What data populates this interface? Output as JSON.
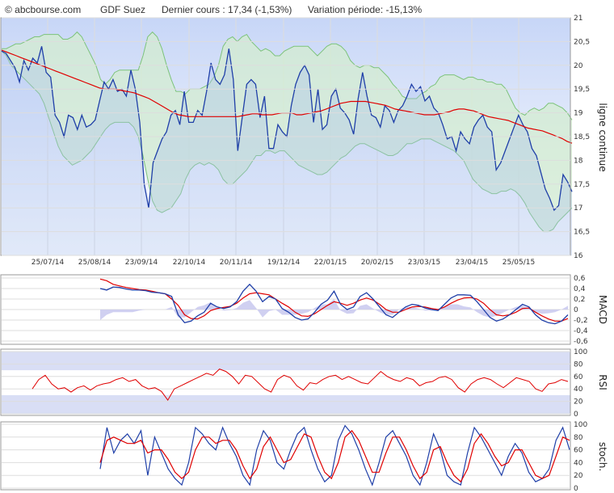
{
  "header": {
    "source": "© abcbourse.com",
    "name": "GDF Suez",
    "last_label": "Dernier cours : 17,34 (-1,53%)",
    "variation_label": "Variation période: -15,13%"
  },
  "colors": {
    "price_line": "#1f3fa8",
    "bollinger_fill": "#d3ecd0",
    "bollinger_edge": "#7dc37a",
    "moving_average": "#e00000",
    "macd_histogram": "#c8c8ee",
    "rsi_band": "#d9def5",
    "grid": "#dddddd"
  },
  "chart_data": [
    {
      "type": "line",
      "panel": "price",
      "ylabel": "ligne continue",
      "ylim": [
        16,
        21
      ],
      "yticks": [
        "21",
        "20,5",
        "20",
        "19,5",
        "19",
        "18,5",
        "18",
        "17,5",
        "17",
        "16,5",
        "16"
      ],
      "xticks": [
        "25/07/14",
        "25/08/14",
        "23/09/14",
        "22/10/14",
        "20/11/14",
        "19/12/14",
        "22/01/15",
        "20/02/15",
        "23/03/15",
        "23/04/15",
        "25/05/15"
      ],
      "grid": true,
      "series": [
        {
          "role": "price",
          "values": [
            20.3,
            20.25,
            20.1,
            19.95,
            19.65,
            20.1,
            19.9,
            20.15,
            20.05,
            20.4,
            19.85,
            19.75,
            18.95,
            18.8,
            18.5,
            18.95,
            18.9,
            18.65,
            18.95,
            18.7,
            18.75,
            18.85,
            19.25,
            19.65,
            19.5,
            19.7,
            19.45,
            19.5,
            19.35,
            19.9,
            19.5,
            18.8,
            17.5,
            17.0,
            17.95,
            18.2,
            18.45,
            18.6,
            18.95,
            19.05,
            18.75,
            19.45,
            18.8,
            18.8,
            19.05,
            18.95,
            19.45,
            20.05,
            19.7,
            19.6,
            19.8,
            20.35,
            19.7,
            18.2,
            18.9,
            19.6,
            19.7,
            19.6,
            18.9,
            19.35,
            18.25,
            18.25,
            18.75,
            18.6,
            18.5,
            19.15,
            19.6,
            19.85,
            20.0,
            19.8,
            18.8,
            19.5,
            18.65,
            18.75,
            19.35,
            19.5,
            19.1,
            19.0,
            18.85,
            18.55,
            19.3,
            19.85,
            19.35,
            18.95,
            18.9,
            18.7,
            19.15,
            19.05,
            18.8,
            19.05,
            19.15,
            19.35,
            19.6,
            19.45,
            19.55,
            19.25,
            19.35,
            19.1,
            19.0,
            18.75,
            18.45,
            18.5,
            18.2,
            18.6,
            18.45,
            18.35,
            18.7,
            18.85,
            18.95,
            18.7,
            18.6,
            17.8,
            17.95,
            18.2,
            18.45,
            18.7,
            18.95,
            18.75,
            18.6,
            18.25,
            18.1,
            17.75,
            17.4,
            17.2,
            16.95,
            17.05,
            17.7,
            17.55,
            17.34
          ]
        },
        {
          "role": "moving_average",
          "values": [
            20.32,
            20.28,
            20.24,
            20.2,
            20.16,
            20.12,
            20.08,
            20.04,
            20.0,
            19.96,
            19.92,
            19.88,
            19.84,
            19.8,
            19.76,
            19.72,
            19.68,
            19.64,
            19.6,
            19.56,
            19.52,
            19.5,
            19.5,
            19.5,
            19.48,
            19.46,
            19.44,
            19.42,
            19.38,
            19.34,
            19.3,
            19.24,
            19.18,
            19.12,
            19.06,
            19.0,
            18.96,
            18.94,
            18.92,
            18.92,
            18.92,
            18.92,
            18.92,
            18.92,
            18.92,
            18.92,
            18.92,
            18.92,
            18.92,
            18.94,
            18.96,
            18.98,
            18.98,
            18.96,
            18.96,
            18.96,
            18.98,
            19.0,
            19.0,
            19.0,
            18.96,
            18.96,
            18.98,
            19.0,
            19.02,
            19.04,
            19.08,
            19.12,
            19.16,
            19.2,
            19.22,
            19.24,
            19.24,
            19.24,
            19.24,
            19.22,
            19.2,
            19.18,
            19.16,
            19.12,
            19.08,
            19.06,
            19.04,
            19.02,
            19.0,
            18.98,
            18.96,
            18.96,
            18.96,
            18.98,
            19.0,
            19.02,
            19.06,
            19.08,
            19.08,
            19.06,
            19.04,
            19.0,
            18.96,
            18.92,
            18.9,
            18.88,
            18.86,
            18.84,
            18.8,
            18.76,
            18.72,
            18.68,
            18.66,
            18.64,
            18.62,
            18.58,
            18.54,
            18.5,
            18.46,
            18.4,
            18.36
          ]
        },
        {
          "role": "bollinger_upper",
          "values": [
            20.35,
            20.35,
            20.4,
            20.45,
            20.45,
            20.5,
            20.55,
            20.6,
            20.6,
            20.65,
            20.65,
            20.65,
            20.65,
            20.55,
            20.55,
            20.6,
            20.7,
            20.6,
            20.4,
            20.2,
            20.0,
            19.7,
            19.6,
            19.7,
            19.85,
            19.9,
            19.9,
            19.9,
            19.9,
            19.9,
            20.2,
            20.6,
            20.7,
            20.6,
            20.35,
            20.0,
            19.7,
            19.45,
            19.45,
            19.4,
            19.5,
            19.5,
            19.5,
            19.55,
            19.6,
            19.75,
            20.0,
            20.4,
            20.55,
            20.6,
            20.5,
            20.6,
            20.65,
            20.5,
            20.4,
            20.3,
            20.35,
            20.3,
            20.2,
            20.2,
            20.3,
            20.35,
            20.4,
            20.4,
            20.4,
            20.4,
            20.3,
            20.2,
            20.3,
            20.4,
            20.45,
            20.45,
            20.4,
            20.3,
            20.1,
            20.0,
            19.95,
            20.0,
            20.0,
            19.95,
            19.95,
            19.85,
            19.75,
            19.6,
            19.5,
            19.35,
            19.3,
            19.3,
            19.3,
            19.4,
            19.45,
            19.55,
            19.6,
            19.75,
            19.8,
            19.8,
            19.8,
            19.75,
            19.7,
            19.75,
            19.75,
            19.7,
            19.7,
            19.65,
            19.65,
            19.6,
            19.6,
            19.5,
            19.3,
            19.1,
            19.0,
            18.95,
            19.05,
            19.1,
            19.05,
            19.1,
            19.2,
            19.2,
            19.15,
            19.1,
            19.0,
            18.85
          ]
        },
        {
          "role": "bollinger_lower",
          "values": [
            20.3,
            20.2,
            20.0,
            19.9,
            19.8,
            19.7,
            19.6,
            19.5,
            19.4,
            19.2,
            18.9,
            18.6,
            18.3,
            18.1,
            18.0,
            17.9,
            17.95,
            18.0,
            18.1,
            18.2,
            18.35,
            18.5,
            18.65,
            18.75,
            18.8,
            18.8,
            18.8,
            18.8,
            18.7,
            18.5,
            18.1,
            17.6,
            17.15,
            16.95,
            16.9,
            16.95,
            17.0,
            17.15,
            17.3,
            17.6,
            17.8,
            17.9,
            17.95,
            17.9,
            17.95,
            17.9,
            17.8,
            17.6,
            17.5,
            17.5,
            17.6,
            17.7,
            17.8,
            17.95,
            18.1,
            18.1,
            18.2,
            18.2,
            18.15,
            18.2,
            18.2,
            18.1,
            18.0,
            17.9,
            17.85,
            17.8,
            17.75,
            17.7,
            17.7,
            17.75,
            17.85,
            17.95,
            18.05,
            18.1,
            18.2,
            18.3,
            18.35,
            18.35,
            18.3,
            18.25,
            18.2,
            18.15,
            18.1,
            18.1,
            18.15,
            18.25,
            18.35,
            18.35,
            18.4,
            18.45,
            18.45,
            18.45,
            18.4,
            18.35,
            18.3,
            18.25,
            18.2,
            18.1,
            18.0,
            17.8,
            17.6,
            17.5,
            17.4,
            17.35,
            17.3,
            17.3,
            17.35,
            17.35,
            17.4,
            17.35,
            17.25,
            17.1,
            16.9,
            16.75,
            16.6,
            16.5,
            16.5,
            16.55,
            16.7,
            16.8,
            16.9,
            17.0
          ]
        }
      ]
    },
    {
      "type": "line",
      "panel": "macd",
      "ylabel": "MACD",
      "ylim": [
        -0.6,
        0.6
      ],
      "yticks": [
        "0,6",
        "0,4",
        "0,2",
        "0",
        "-0,2",
        "-0,4",
        "-0,6"
      ],
      "series": [
        {
          "role": "macd",
          "values": [
            0.4,
            0.37,
            0.43,
            0.42,
            0.39,
            0.37,
            0.37,
            0.36,
            0.33,
            0.32,
            0.3,
            0.25,
            -0.1,
            -0.25,
            -0.22,
            -0.12,
            -0.05,
            0.12,
            0.05,
            0.02,
            0.05,
            0.15,
            0.35,
            0.48,
            0.35,
            0.15,
            0.25,
            0.2,
            0.02,
            -0.05,
            -0.15,
            -0.2,
            -0.18,
            -0.05,
            0.1,
            0.18,
            0.35,
            0.1,
            0.0,
            0.05,
            0.25,
            0.32,
            0.2,
            0.05,
            -0.1,
            -0.15,
            -0.05,
            0.05,
            0.1,
            0.08,
            0.03,
            0.0,
            -0.02,
            0.1,
            0.22,
            0.28,
            0.28,
            0.27,
            0.15,
            0.0,
            -0.15,
            -0.22,
            -0.18,
            -0.1,
            0.0,
            0.1,
            0.05,
            -0.1,
            -0.2,
            -0.25,
            -0.27,
            -0.22,
            -0.1
          ]
        },
        {
          "role": "signal",
          "values": [
            0.58,
            0.55,
            0.48,
            0.45,
            0.42,
            0.4,
            0.38,
            0.37,
            0.35,
            0.32,
            0.3,
            0.2,
            0.08,
            -0.1,
            -0.17,
            -0.18,
            -0.12,
            -0.02,
            0.02,
            0.04,
            0.06,
            0.12,
            0.22,
            0.3,
            0.32,
            0.3,
            0.28,
            0.2,
            0.12,
            0.05,
            -0.05,
            -0.12,
            -0.13,
            -0.08,
            0.0,
            0.08,
            0.15,
            0.12,
            0.08,
            0.12,
            0.18,
            0.22,
            0.18,
            0.1,
            0.0,
            -0.05,
            -0.05,
            0.0,
            0.05,
            0.06,
            0.05,
            0.02,
            0.0,
            0.05,
            0.12,
            0.18,
            0.22,
            0.23,
            0.2,
            0.12,
            0.0,
            -0.1,
            -0.12,
            -0.1,
            -0.05,
            0.02,
            0.03,
            -0.05,
            -0.12,
            -0.18,
            -0.22,
            -0.22,
            -0.17
          ]
        },
        {
          "role": "histogram",
          "values": [
            -0.2,
            -0.1,
            -0.05,
            -0.05,
            -0.05,
            -0.05,
            -0.02,
            0.0,
            0.0,
            0.0,
            0.0,
            0.05,
            -0.15,
            -0.15,
            -0.05,
            0.05,
            0.08,
            0.14,
            0.03,
            -0.02,
            -0.01,
            0.03,
            0.13,
            0.18,
            0.03,
            -0.15,
            -0.03,
            0.0,
            -0.1,
            -0.1,
            -0.1,
            -0.08,
            -0.05,
            0.03,
            0.1,
            0.1,
            0.2,
            -0.02,
            -0.08,
            -0.07,
            0.07,
            0.1,
            0.02,
            -0.05,
            -0.1,
            -0.1,
            0.0,
            0.05,
            0.05,
            0.02,
            -0.02,
            -0.02,
            -0.02,
            0.05,
            0.1,
            0.1,
            0.06,
            0.04,
            -0.05,
            -0.12,
            -0.15,
            -0.12,
            -0.06,
            0.0,
            0.05,
            0.08,
            0.02,
            -0.05,
            -0.08,
            -0.07,
            -0.05,
            0.0,
            0.07
          ]
        }
      ]
    },
    {
      "type": "line",
      "panel": "rsi",
      "ylabel": "RSI",
      "ylim": [
        0,
        100
      ],
      "yticks": [
        "100",
        "80",
        "60",
        "40",
        "20",
        "0"
      ],
      "series": [
        {
          "role": "rsi",
          "values": [
            40,
            55,
            62,
            48,
            40,
            42,
            35,
            42,
            45,
            38,
            45,
            48,
            50,
            55,
            58,
            52,
            55,
            45,
            40,
            42,
            36,
            22,
            40,
            45,
            50,
            55,
            60,
            65,
            62,
            72,
            68,
            60,
            48,
            62,
            60,
            50,
            40,
            35,
            55,
            62,
            58,
            45,
            38,
            50,
            48,
            55,
            60,
            62,
            55,
            60,
            55,
            50,
            48,
            58,
            68,
            60,
            55,
            52,
            58,
            55,
            45,
            50,
            52,
            58,
            60,
            55,
            42,
            35,
            48,
            55,
            58,
            55,
            48,
            42,
            50,
            58,
            55,
            52,
            40,
            36,
            48,
            50,
            55,
            52
          ]
        }
      ]
    },
    {
      "type": "line",
      "panel": "stochastic",
      "ylabel": "stoch.",
      "ylim": [
        0,
        100
      ],
      "yticks": [
        "100",
        "80",
        "60",
        "40",
        "20",
        "0"
      ],
      "series": [
        {
          "role": "stoch_k",
          "values": [
            30,
            95,
            55,
            75,
            85,
            70,
            90,
            20,
            80,
            55,
            30,
            15,
            5,
            40,
            95,
            85,
            70,
            60,
            95,
            70,
            50,
            20,
            5,
            60,
            90,
            75,
            40,
            30,
            60,
            85,
            95,
            60,
            30,
            10,
            20,
            75,
            98,
            85,
            60,
            30,
            5,
            40,
            80,
            90,
            70,
            50,
            20,
            5,
            40,
            85,
            60,
            20,
            10,
            5,
            55,
            95,
            80,
            60,
            40,
            20,
            50,
            70,
            55,
            25,
            10,
            15,
            30,
            75,
            95,
            60
          ]
        },
        {
          "role": "stoch_d",
          "values": [
            40,
            75,
            80,
            75,
            70,
            70,
            75,
            55,
            60,
            60,
            45,
            25,
            15,
            25,
            60,
            80,
            80,
            70,
            75,
            75,
            60,
            35,
            15,
            30,
            65,
            80,
            60,
            40,
            45,
            65,
            85,
            80,
            50,
            25,
            15,
            40,
            80,
            90,
            75,
            50,
            25,
            25,
            55,
            80,
            80,
            60,
            35,
            15,
            25,
            60,
            65,
            40,
            20,
            10,
            30,
            70,
            85,
            70,
            50,
            35,
            40,
            60,
            60,
            40,
            20,
            15,
            20,
            50,
            80,
            75
          ]
        }
      ]
    }
  ]
}
